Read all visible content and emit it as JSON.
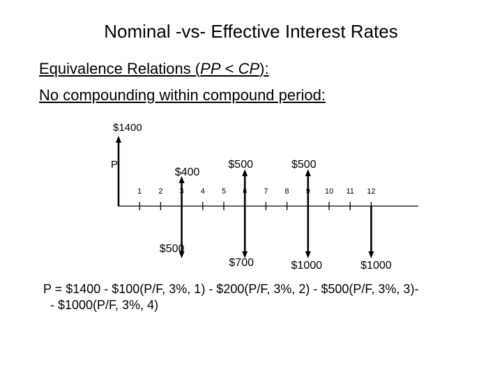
{
  "title": "Nominal -vs- Effective Interest Rates",
  "subtitle_1_prefix": "Equivalence Relations (",
  "subtitle_1_italic_a": "PP",
  "subtitle_1_mid": " < ",
  "subtitle_1_italic_b": "CP",
  "subtitle_1_suffix": "):",
  "subtitle_2": "No compounding within compound period:",
  "diagram": {
    "p_label": "P",
    "periods": [
      "1",
      "2",
      "3",
      "4",
      "5",
      "6",
      "7",
      "8",
      "9",
      "10",
      "11",
      "12"
    ],
    "cash_flows": [
      {
        "period": 0,
        "direction": "up",
        "label": "$1400"
      },
      {
        "period": 3,
        "direction": "up",
        "label": "$400"
      },
      {
        "period": 6,
        "direction": "up",
        "label": "$500"
      },
      {
        "period": 9,
        "direction": "up",
        "label": "$500"
      },
      {
        "period": 3,
        "direction": "down",
        "label": "$500"
      },
      {
        "period": 6,
        "direction": "down",
        "label": "$700"
      },
      {
        "period": 9,
        "direction": "down",
        "label": "$1000"
      },
      {
        "period": 12,
        "direction": "down",
        "label": "$1000"
      }
    ]
  },
  "formula_line_1": "P = $1400 - $100(P/F, 3%, 1) - $200(P/F, 3%, 2) - $500(P/F, 3%, 3)-",
  "formula_line_2": "- $1000(P/F, 3%, 4)"
}
